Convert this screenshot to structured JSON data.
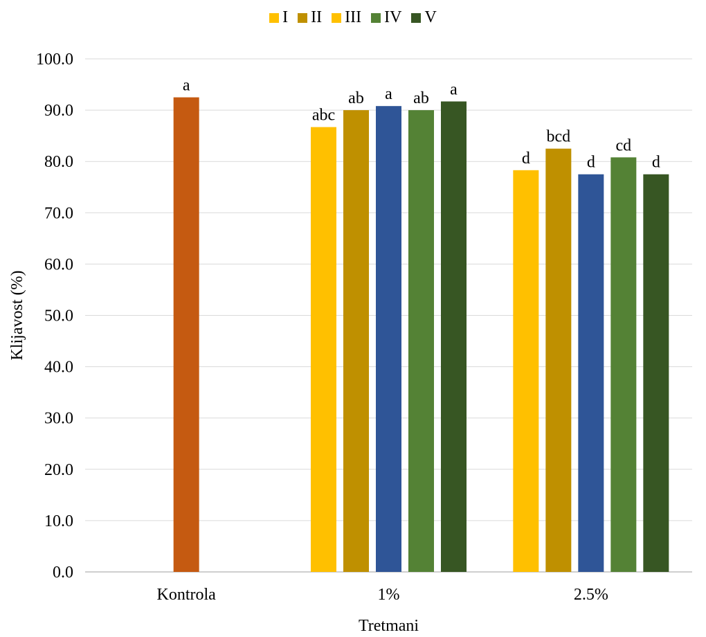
{
  "chart_data": {
    "type": "bar",
    "xlabel": "Tretmani",
    "ylabel": "Klijavost (%)",
    "ylim": [
      0,
      100
    ],
    "yticks": [
      "0.0",
      "10.0",
      "20.0",
      "30.0",
      "40.0",
      "50.0",
      "60.0",
      "70.0",
      "80.0",
      "90.0",
      "100.0"
    ],
    "grid": true,
    "legend_position": "top",
    "legend": [
      {
        "name": "I",
        "color": "#FFC000"
      },
      {
        "name": "II",
        "color": "#BF9000"
      },
      {
        "name": "III",
        "color": "#FFC000"
      },
      {
        "name": "IV",
        "color": "#548235"
      },
      {
        "name": "V",
        "color": "#375623"
      }
    ],
    "groups": [
      {
        "category": "Kontrola",
        "bars": [
          {
            "value": 92.5,
            "label": "a",
            "color": "#C55A11"
          }
        ]
      },
      {
        "category": "1%",
        "bars": [
          {
            "series": "I",
            "value": 86.7,
            "label": "abc",
            "color": "#FFC000"
          },
          {
            "series": "II",
            "value": 90.0,
            "label": "ab",
            "color": "#BF9000"
          },
          {
            "series": "III",
            "value": 90.8,
            "label": "a",
            "color": "#2F5597"
          },
          {
            "series": "IV",
            "value": 90.0,
            "label": "ab",
            "color": "#548235"
          },
          {
            "series": "V",
            "value": 91.7,
            "label": "a",
            "color": "#375623"
          }
        ]
      },
      {
        "category": "2.5%",
        "bars": [
          {
            "series": "I",
            "value": 78.3,
            "label": "d",
            "color": "#FFC000"
          },
          {
            "series": "II",
            "value": 82.5,
            "label": "bcd",
            "color": "#BF9000"
          },
          {
            "series": "III",
            "value": 77.5,
            "label": "d",
            "color": "#2F5597"
          },
          {
            "series": "IV",
            "value": 80.8,
            "label": "cd",
            "color": "#548235"
          },
          {
            "series": "V",
            "value": 77.5,
            "label": "d",
            "color": "#375623"
          }
        ]
      }
    ]
  }
}
